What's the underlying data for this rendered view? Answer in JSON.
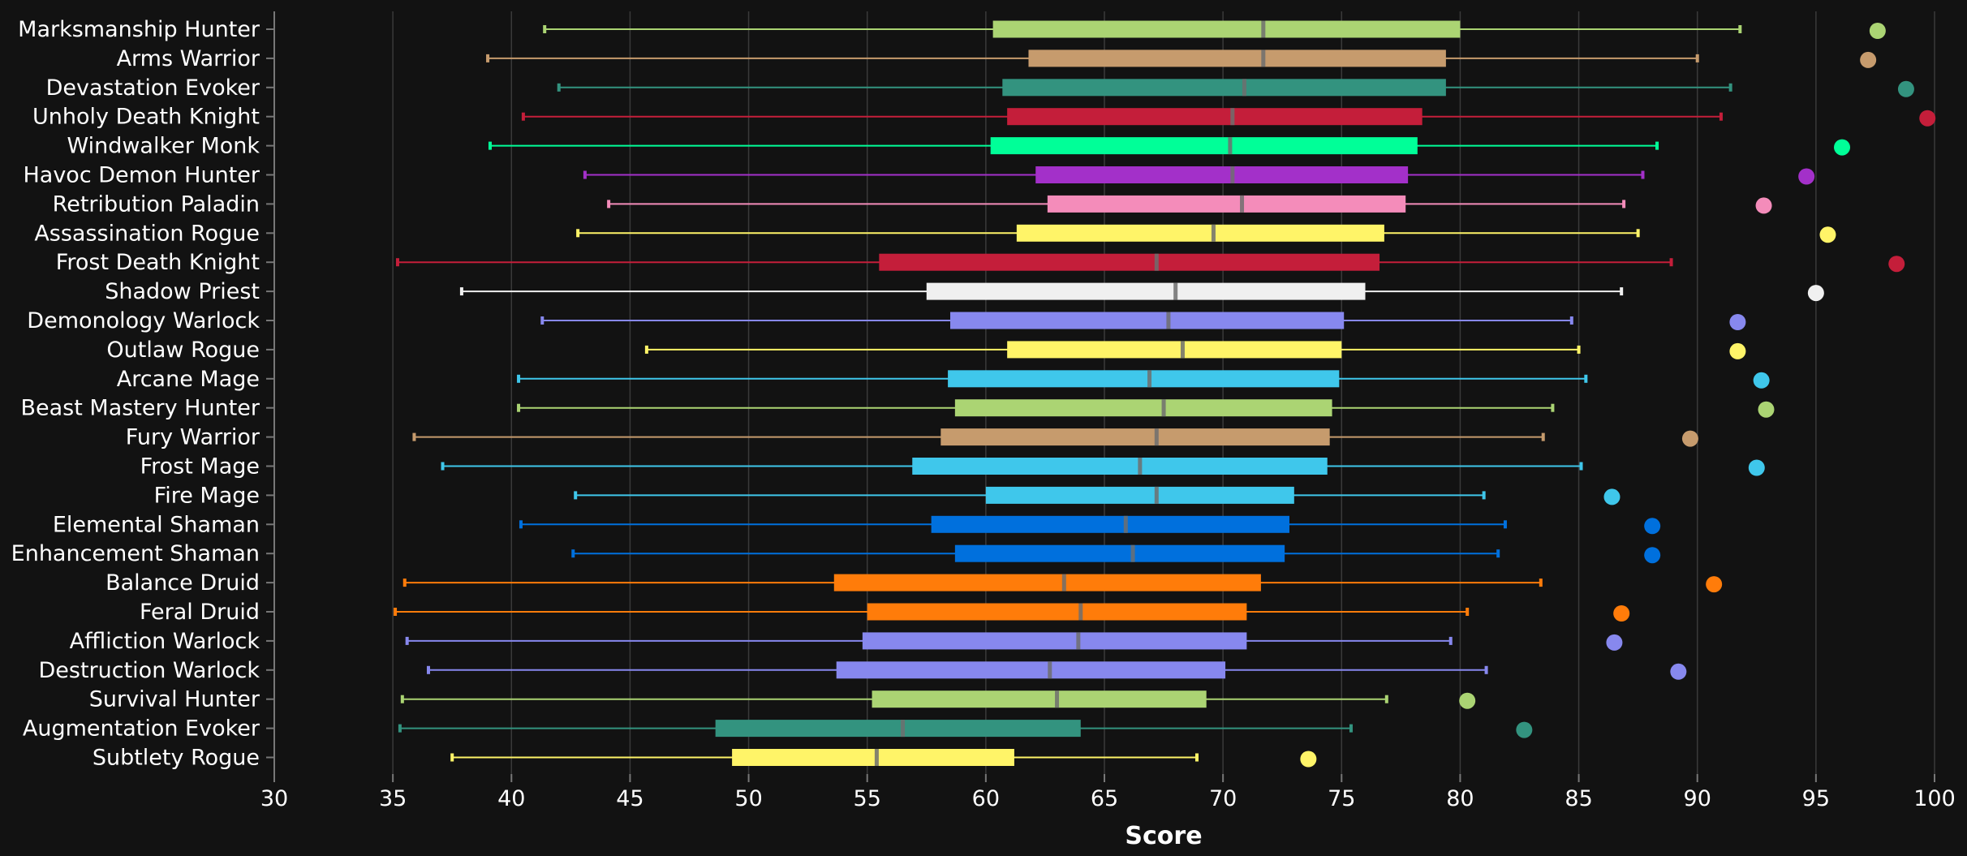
{
  "chart_data": {
    "type": "box",
    "orientation": "horizontal",
    "xlabel": "Score",
    "xlim": [
      30,
      100
    ],
    "xticks": [
      30,
      35,
      40,
      45,
      50,
      55,
      60,
      65,
      70,
      75,
      80,
      85,
      90,
      95,
      100
    ],
    "grid": true,
    "background": "#121212",
    "series": [
      {
        "name": "Marksmanship Hunter",
        "color": "#abd473",
        "min": 41.4,
        "q1": 60.3,
        "median": 71.7,
        "q3": 80.0,
        "max": 91.8,
        "outlier": 97.6
      },
      {
        "name": "Arms Warrior",
        "color": "#c69b6d",
        "min": 39.0,
        "q1": 61.8,
        "median": 71.7,
        "q3": 79.4,
        "max": 90.0,
        "outlier": 97.2
      },
      {
        "name": "Devastation Evoker",
        "color": "#33937f",
        "min": 42.0,
        "q1": 60.7,
        "median": 70.9,
        "q3": 79.4,
        "max": 91.4,
        "outlier": 98.8
      },
      {
        "name": "Unholy Death Knight",
        "color": "#c41e3a",
        "min": 40.5,
        "q1": 60.9,
        "median": 70.4,
        "q3": 78.4,
        "max": 91.0,
        "outlier": 99.7
      },
      {
        "name": "Windwalker Monk",
        "color": "#00ff98",
        "min": 39.1,
        "q1": 60.2,
        "median": 70.3,
        "q3": 78.2,
        "max": 88.3,
        "outlier": 96.1
      },
      {
        "name": "Havoc Demon Hunter",
        "color": "#a330c9",
        "min": 43.1,
        "q1": 62.1,
        "median": 70.4,
        "q3": 77.8,
        "max": 87.7,
        "outlier": 94.6
      },
      {
        "name": "Retribution Paladin",
        "color": "#f48cba",
        "min": 44.1,
        "q1": 62.6,
        "median": 70.8,
        "q3": 77.7,
        "max": 86.9,
        "outlier": 92.8
      },
      {
        "name": "Assassination Rogue",
        "color": "#fff468",
        "min": 42.8,
        "q1": 61.3,
        "median": 69.6,
        "q3": 76.8,
        "max": 87.5,
        "outlier": 95.5
      },
      {
        "name": "Frost Death Knight",
        "color": "#c41e3a",
        "min": 35.2,
        "q1": 55.5,
        "median": 67.2,
        "q3": 76.6,
        "max": 88.9,
        "outlier": 98.4
      },
      {
        "name": "Shadow Priest",
        "color": "#f0f0f0",
        "min": 37.9,
        "q1": 57.5,
        "median": 68.0,
        "q3": 76.0,
        "max": 86.8,
        "outlier": 95.0
      },
      {
        "name": "Demonology Warlock",
        "color": "#8788ee",
        "min": 41.3,
        "q1": 58.5,
        "median": 67.7,
        "q3": 75.1,
        "max": 84.7,
        "outlier": 91.7
      },
      {
        "name": "Outlaw Rogue",
        "color": "#fff468",
        "min": 45.7,
        "q1": 60.9,
        "median": 68.3,
        "q3": 75.0,
        "max": 85.0,
        "outlier": 91.7
      },
      {
        "name": "Arcane Mage",
        "color": "#3fc7eb",
        "min": 40.3,
        "q1": 58.4,
        "median": 66.9,
        "q3": 74.9,
        "max": 85.3,
        "outlier": 92.7
      },
      {
        "name": "Beast Mastery Hunter",
        "color": "#abd473",
        "min": 40.3,
        "q1": 58.7,
        "median": 67.5,
        "q3": 74.6,
        "max": 83.9,
        "outlier": 92.9
      },
      {
        "name": "Fury Warrior",
        "color": "#c69b6d",
        "min": 35.9,
        "q1": 58.1,
        "median": 67.2,
        "q3": 74.5,
        "max": 83.5,
        "outlier": 89.7
      },
      {
        "name": "Frost Mage",
        "color": "#3fc7eb",
        "min": 37.1,
        "q1": 56.9,
        "median": 66.5,
        "q3": 74.4,
        "max": 85.1,
        "outlier": 92.5
      },
      {
        "name": "Fire Mage",
        "color": "#3fc7eb",
        "min": 42.7,
        "q1": 60.0,
        "median": 67.2,
        "q3": 73.0,
        "max": 81.0,
        "outlier": 86.4
      },
      {
        "name": "Elemental Shaman",
        "color": "#0070dd",
        "min": 40.4,
        "q1": 57.7,
        "median": 65.9,
        "q3": 72.8,
        "max": 81.9,
        "outlier": 88.1
      },
      {
        "name": "Enhancement Shaman",
        "color": "#0070dd",
        "min": 42.6,
        "q1": 58.7,
        "median": 66.2,
        "q3": 72.6,
        "max": 81.6,
        "outlier": 88.1
      },
      {
        "name": "Balance Druid",
        "color": "#ff7c0a",
        "min": 35.5,
        "q1": 53.6,
        "median": 63.3,
        "q3": 71.6,
        "max": 83.4,
        "outlier": 90.7
      },
      {
        "name": "Feral Druid",
        "color": "#ff7c0a",
        "min": 35.1,
        "q1": 55.0,
        "median": 64.0,
        "q3": 71.0,
        "max": 80.3,
        "outlier": 86.8
      },
      {
        "name": "Affliction Warlock",
        "color": "#8788ee",
        "min": 35.6,
        "q1": 54.8,
        "median": 63.9,
        "q3": 71.0,
        "max": 79.6,
        "outlier": 86.5
      },
      {
        "name": "Destruction Warlock",
        "color": "#8788ee",
        "min": 36.5,
        "q1": 53.7,
        "median": 62.7,
        "q3": 70.1,
        "max": 81.1,
        "outlier": 89.2
      },
      {
        "name": "Survival Hunter",
        "color": "#abd473",
        "min": 35.4,
        "q1": 55.2,
        "median": 63.0,
        "q3": 69.3,
        "max": 76.9,
        "outlier": 80.3
      },
      {
        "name": "Augmentation Evoker",
        "color": "#33937f",
        "min": 35.3,
        "q1": 48.6,
        "median": 56.5,
        "q3": 64.0,
        "max": 75.4,
        "outlier": 82.7
      },
      {
        "name": "Subtlety Rogue",
        "color": "#fff468",
        "min": 37.5,
        "q1": 49.3,
        "median": 55.4,
        "q3": 61.2,
        "max": 68.9,
        "outlier": 73.6
      }
    ]
  }
}
